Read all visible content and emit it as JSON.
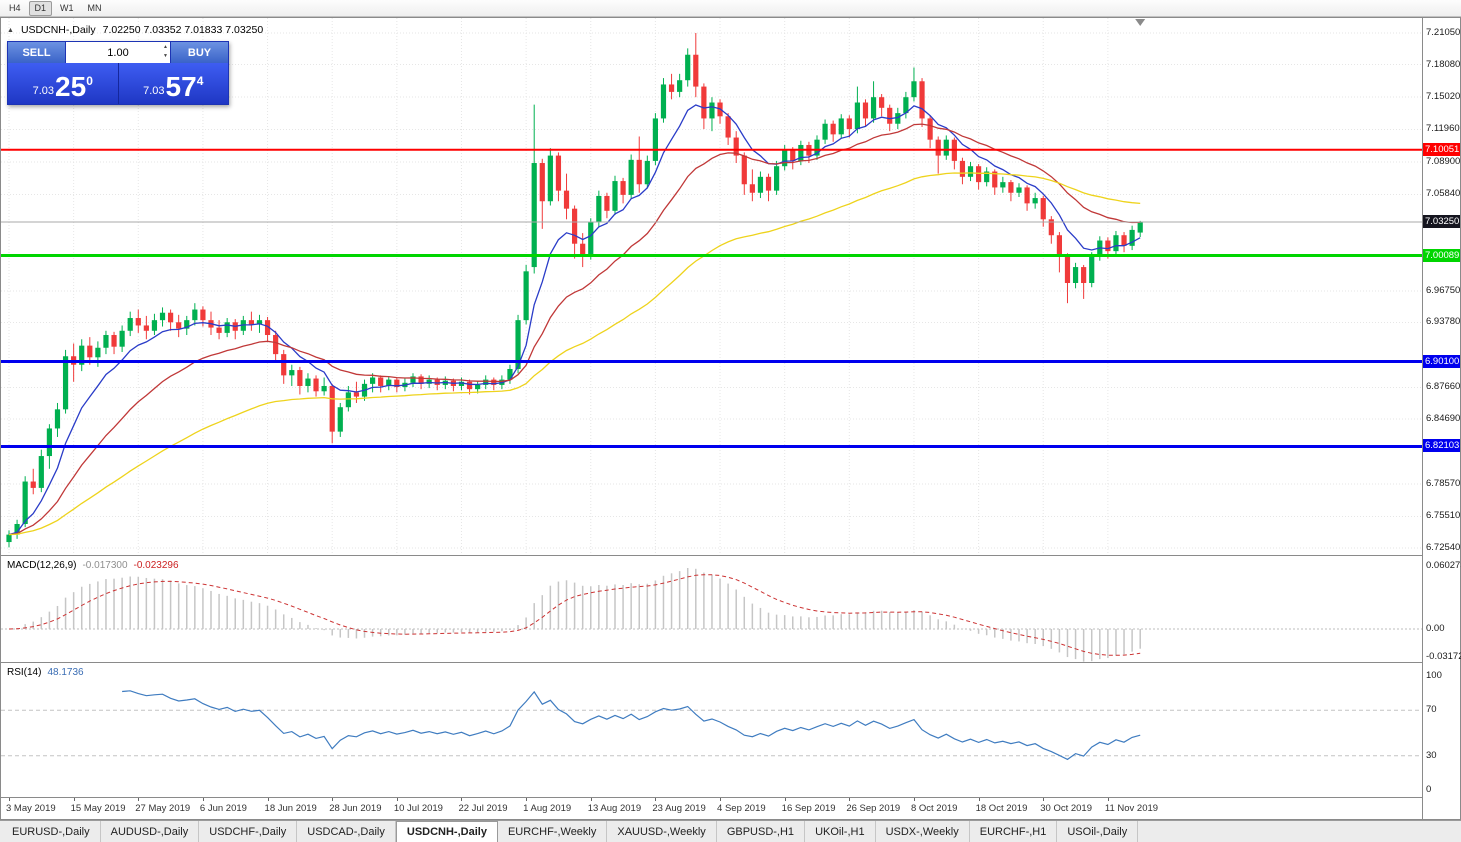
{
  "toolbar": {
    "timeframes": [
      "H4",
      "D1",
      "W1",
      "MN"
    ],
    "active": "D1"
  },
  "chart": {
    "symbol": "USDCNH-,Daily",
    "ohlc_text": "7.02250 7.03352 7.01833 7.03250"
  },
  "icons": {
    "collapse": "▲",
    "spinner_up": "▲",
    "spinner_down": "▼"
  },
  "trade_panel": {
    "sell_label": "SELL",
    "buy_label": "BUY",
    "volume": "1.00",
    "bid": {
      "prefix": "7.03",
      "big": "25",
      "sup": "0"
    },
    "ask": {
      "prefix": "7.03",
      "big": "57",
      "sup": "4"
    },
    "panel_color": "#2d49d8"
  },
  "price_axis": {
    "labels": [
      "7.21050",
      "7.18080",
      "7.15020",
      "7.11960",
      "7.08900",
      "7.05840",
      "6.96750",
      "6.93780",
      "6.87660",
      "6.84690",
      "6.78570",
      "6.75510",
      "6.72540"
    ]
  },
  "macd_panel": {
    "name": "MACD(12,26,9)",
    "value_main": "-0.017300",
    "value_signal": "-0.023296",
    "axis": [
      {
        "label": "0.060273",
        "v": 0.060273
      },
      {
        "label": "0.00",
        "v": 0
      },
      {
        "label": "-0.031725",
        "v": -0.031725
      }
    ]
  },
  "rsi_panel": {
    "name": "RSI(14)",
    "value": "48.1736",
    "axis": [
      {
        "label": "100",
        "v": 100
      },
      {
        "label": "70",
        "v": 70
      },
      {
        "label": "30",
        "v": 30
      },
      {
        "label": "0",
        "v": 0
      }
    ]
  },
  "tab_bar": {
    "active_index": 4,
    "tabs": [
      "EURUSD-,Daily",
      "AUDUSD-,Daily",
      "USDCHF-,Daily",
      "USDCAD-,Daily",
      "USDCNH-,Daily",
      "EURCHF-,Weekly",
      "XAUUSD-,Weekly",
      "GBPUSD-,H1",
      "UKOil-,H1",
      "USDX-,Weekly",
      "EURCHF-,H1",
      "USOil-,Daily"
    ]
  },
  "chart_data": {
    "type": "candlestick",
    "title": "USDCNH-,Daily",
    "ylim": [
      6.7188,
      7.2246
    ],
    "x_ticks": [
      {
        "label": "3 May 2019",
        "i": 0
      },
      {
        "label": "15 May 2019",
        "i": 8
      },
      {
        "label": "27 May 2019",
        "i": 16
      },
      {
        "label": "6 Jun 2019",
        "i": 24
      },
      {
        "label": "18 Jun 2019",
        "i": 32
      },
      {
        "label": "28 Jun 2019",
        "i": 40
      },
      {
        "label": "10 Jul 2019",
        "i": 48
      },
      {
        "label": "22 Jul 2019",
        "i": 56
      },
      {
        "label": "1 Aug 2019",
        "i": 64
      },
      {
        "label": "13 Aug 2019",
        "i": 72
      },
      {
        "label": "23 Aug 2019",
        "i": 80
      },
      {
        "label": "4 Sep 2019",
        "i": 88
      },
      {
        "label": "16 Sep 2019",
        "i": 96
      },
      {
        "label": "26 Sep 2019",
        "i": 104
      },
      {
        "label": "8 Oct 2019",
        "i": 112
      },
      {
        "label": "18 Oct 2019",
        "i": 120
      },
      {
        "label": "30 Oct 2019",
        "i": 128
      },
      {
        "label": "11 Nov 2019",
        "i": 136
      }
    ],
    "hlines": [
      {
        "price": 7.10051,
        "label": "7.10051",
        "color": "#ff0000",
        "width": 2
      },
      {
        "price": 7.00089,
        "label": "7.00089",
        "color": "#00d500",
        "width": 3
      },
      {
        "price": 6.901,
        "label": "6.90100",
        "color": "#0000ee",
        "width": 3
      },
      {
        "price": 6.82103,
        "label": "6.82103",
        "color": "#0000ee",
        "width": 3
      }
    ],
    "current_price": {
      "price": 7.0325,
      "label": "7.03250",
      "color": "#15151f",
      "line_color": "#a8a8a8"
    },
    "colors": {
      "up": "#00b050",
      "down": "#f03a3a",
      "grid": "#e6e6e6"
    },
    "moving_averages": [
      {
        "period": 8,
        "color": "#2a3cc8"
      },
      {
        "period": 21,
        "color": "#c03838"
      },
      {
        "period": 55,
        "color": "#eed31c"
      }
    ],
    "macd": {
      "fast": 12,
      "slow": 26,
      "signal": 9,
      "histogram_color": "#c6c6c6",
      "signal_color": "#cc3333"
    },
    "rsi": {
      "period": 14,
      "color": "#3f7cc0",
      "levels": [
        70,
        30
      ],
      "level_color": "#c4c4c4"
    },
    "ohlc": [
      [
        6.731,
        6.742,
        6.726,
        6.738
      ],
      [
        6.738,
        6.752,
        6.734,
        6.748
      ],
      [
        6.748,
        6.793,
        6.745,
        6.788
      ],
      [
        6.788,
        6.8,
        6.776,
        6.782
      ],
      [
        6.782,
        6.818,
        6.778,
        6.812
      ],
      [
        6.812,
        6.842,
        6.8,
        6.838
      ],
      [
        6.838,
        6.862,
        6.83,
        6.856
      ],
      [
        6.856,
        6.912,
        6.852,
        6.906
      ],
      [
        6.906,
        6.918,
        6.882,
        6.898
      ],
      [
        6.898,
        6.922,
        6.892,
        6.916
      ],
      [
        6.916,
        6.924,
        6.898,
        6.905
      ],
      [
        6.905,
        6.92,
        6.896,
        6.914
      ],
      [
        6.914,
        6.93,
        6.908,
        6.926
      ],
      [
        6.926,
        6.929,
        6.908,
        6.915
      ],
      [
        6.915,
        6.935,
        6.91,
        6.93
      ],
      [
        6.93,
        6.948,
        6.925,
        6.942
      ],
      [
        6.942,
        6.95,
        6.928,
        6.935
      ],
      [
        6.935,
        6.944,
        6.922,
        6.93
      ],
      [
        6.93,
        6.946,
        6.926,
        6.94
      ],
      [
        6.94,
        6.952,
        6.934,
        6.947
      ],
      [
        6.947,
        6.95,
        6.93,
        6.938
      ],
      [
        6.938,
        6.945,
        6.924,
        6.932
      ],
      [
        6.932,
        6.944,
        6.926,
        6.94
      ],
      [
        6.94,
        6.956,
        6.935,
        6.95
      ],
      [
        6.95,
        6.953,
        6.934,
        6.94
      ],
      [
        6.94,
        6.948,
        6.926,
        6.933
      ],
      [
        6.933,
        6.94,
        6.922,
        6.928
      ],
      [
        6.928,
        6.942,
        6.924,
        6.938
      ],
      [
        6.938,
        6.941,
        6.922,
        6.93
      ],
      [
        6.93,
        6.944,
        6.926,
        6.94
      ],
      [
        6.94,
        6.948,
        6.93,
        6.936
      ],
      [
        6.936,
        6.945,
        6.928,
        6.94
      ],
      [
        6.94,
        6.943,
        6.92,
        6.926
      ],
      [
        6.926,
        6.93,
        6.9,
        6.908
      ],
      [
        6.908,
        6.912,
        6.88,
        6.888
      ],
      [
        6.888,
        6.898,
        6.878,
        6.893
      ],
      [
        6.893,
        6.896,
        6.87,
        6.878
      ],
      [
        6.878,
        6.89,
        6.872,
        6.885
      ],
      [
        6.885,
        6.888,
        6.868,
        6.873
      ],
      [
        6.873,
        6.886,
        6.869,
        6.878
      ],
      [
        6.878,
        6.88,
        6.824,
        6.835
      ],
      [
        6.835,
        6.862,
        6.83,
        6.858
      ],
      [
        6.858,
        6.878,
        6.854,
        6.872
      ],
      [
        6.872,
        6.882,
        6.862,
        6.868
      ],
      [
        6.868,
        6.884,
        6.864,
        6.88
      ],
      [
        6.88,
        6.89,
        6.872,
        6.886
      ],
      [
        6.886,
        6.888,
        6.872,
        6.878
      ],
      [
        6.878,
        6.887,
        6.874,
        6.884
      ],
      [
        6.884,
        6.886,
        6.872,
        6.877
      ],
      [
        6.877,
        6.885,
        6.873,
        6.881
      ],
      [
        6.881,
        6.89,
        6.877,
        6.887
      ],
      [
        6.887,
        6.889,
        6.875,
        6.88
      ],
      [
        6.88,
        6.888,
        6.876,
        6.884
      ],
      [
        6.884,
        6.886,
        6.874,
        6.879
      ],
      [
        6.879,
        6.887,
        6.875,
        6.883
      ],
      [
        6.883,
        6.885,
        6.873,
        6.878
      ],
      [
        6.878,
        6.886,
        6.874,
        6.882
      ],
      [
        6.882,
        6.884,
        6.87,
        6.875
      ],
      [
        6.875,
        6.883,
        6.871,
        6.879
      ],
      [
        6.879,
        6.888,
        6.875,
        6.884
      ],
      [
        6.884,
        6.886,
        6.874,
        6.879
      ],
      [
        6.879,
        6.888,
        6.875,
        6.884
      ],
      [
        6.884,
        6.898,
        6.88,
        6.894
      ],
      [
        6.894,
        6.945,
        6.89,
        6.94
      ],
      [
        6.94,
        6.992,
        6.936,
        6.986
      ],
      [
        6.99,
        7.143,
        6.984,
        7.088
      ],
      [
        7.088,
        7.092,
        7.026,
        7.052
      ],
      [
        7.052,
        7.102,
        7.048,
        7.095
      ],
      [
        7.095,
        7.098,
        7.052,
        7.062
      ],
      [
        7.062,
        7.078,
        7.035,
        7.045
      ],
      [
        7.045,
        7.048,
        6.998,
        7.012
      ],
      [
        7.012,
        7.022,
        6.99,
        7.002
      ],
      [
        7.002,
        7.036,
        6.997,
        7.032
      ],
      [
        7.032,
        7.062,
        7.028,
        7.057
      ],
      [
        7.057,
        7.06,
        7.036,
        7.043
      ],
      [
        7.043,
        7.076,
        7.039,
        7.071
      ],
      [
        7.071,
        7.074,
        7.05,
        7.058
      ],
      [
        7.058,
        7.096,
        7.054,
        7.091
      ],
      [
        7.091,
        7.113,
        7.06,
        7.068
      ],
      [
        7.068,
        7.095,
        7.064,
        7.09
      ],
      [
        7.09,
        7.135,
        7.086,
        7.13
      ],
      [
        7.13,
        7.168,
        7.126,
        7.162
      ],
      [
        7.162,
        7.172,
        7.148,
        7.155
      ],
      [
        7.155,
        7.172,
        7.15,
        7.166
      ],
      [
        7.166,
        7.196,
        7.16,
        7.19
      ],
      [
        7.19,
        7.2105,
        7.15,
        7.16
      ],
      [
        7.16,
        7.163,
        7.12,
        7.13
      ],
      [
        7.13,
        7.15,
        7.118,
        7.145
      ],
      [
        7.145,
        7.148,
        7.125,
        7.132
      ],
      [
        7.132,
        7.135,
        7.105,
        7.112
      ],
      [
        7.112,
        7.118,
        7.088,
        7.095
      ],
      [
        7.095,
        7.098,
        7.058,
        7.068
      ],
      [
        7.068,
        7.082,
        7.052,
        7.06
      ],
      [
        7.06,
        7.08,
        7.055,
        7.075
      ],
      [
        7.075,
        7.078,
        7.052,
        7.062
      ],
      [
        7.062,
        7.09,
        7.058,
        7.085
      ],
      [
        7.085,
        7.105,
        7.081,
        7.1
      ],
      [
        7.1,
        7.103,
        7.082,
        7.09
      ],
      [
        7.09,
        7.109,
        7.086,
        7.105
      ],
      [
        7.105,
        7.108,
        7.088,
        7.095
      ],
      [
        7.095,
        7.114,
        7.091,
        7.11
      ],
      [
        7.11,
        7.129,
        7.106,
        7.125
      ],
      [
        7.125,
        7.128,
        7.108,
        7.115
      ],
      [
        7.115,
        7.134,
        7.111,
        7.13
      ],
      [
        7.13,
        7.133,
        7.112,
        7.12
      ],
      [
        7.12,
        7.16,
        7.116,
        7.145
      ],
      [
        7.145,
        7.148,
        7.122,
        7.13
      ],
      [
        7.13,
        7.165,
        7.126,
        7.15
      ],
      [
        7.15,
        7.153,
        7.132,
        7.14
      ],
      [
        7.14,
        7.143,
        7.118,
        7.125
      ],
      [
        7.125,
        7.14,
        7.12,
        7.135
      ],
      [
        7.135,
        7.155,
        7.13,
        7.15
      ],
      [
        7.15,
        7.178,
        7.146,
        7.165
      ],
      [
        7.165,
        7.168,
        7.122,
        7.13
      ],
      [
        7.13,
        7.133,
        7.102,
        7.11
      ],
      [
        7.11,
        7.113,
        7.078,
        7.095
      ],
      [
        7.095,
        7.114,
        7.091,
        7.11
      ],
      [
        7.11,
        7.112,
        7.082,
        7.09
      ],
      [
        7.09,
        7.093,
        7.068,
        7.075
      ],
      [
        7.075,
        7.089,
        7.071,
        7.085
      ],
      [
        7.085,
        7.087,
        7.063,
        7.07
      ],
      [
        7.07,
        7.084,
        7.066,
        7.08
      ],
      [
        7.08,
        7.082,
        7.058,
        7.065
      ],
      [
        7.065,
        7.075,
        7.06,
        7.07
      ],
      [
        7.07,
        7.072,
        7.052,
        7.06
      ],
      [
        7.06,
        7.069,
        7.056,
        7.065
      ],
      [
        7.065,
        7.067,
        7.043,
        7.05
      ],
      [
        7.05,
        7.06,
        7.045,
        7.055
      ],
      [
        7.055,
        7.057,
        7.028,
        7.035
      ],
      [
        7.035,
        7.038,
        7.012,
        7.02
      ],
      [
        7.02,
        7.023,
        6.985,
        7.0
      ],
      [
        7.0,
        7.003,
        6.956,
        6.975
      ],
      [
        6.975,
        6.994,
        6.97,
        6.99
      ],
      [
        6.99,
        6.992,
        6.96,
        6.975
      ],
      [
        6.975,
        7.004,
        6.971,
        7.0
      ],
      [
        7.0,
        7.019,
        6.996,
        7.015
      ],
      [
        7.015,
        7.018,
        6.998,
        7.005
      ],
      [
        7.005,
        7.024,
        7.001,
        7.02
      ],
      [
        7.02,
        7.023,
        7.004,
        7.01
      ],
      [
        7.01,
        7.029,
        7.006,
        7.025
      ],
      [
        7.0225,
        7.03352,
        7.01833,
        7.0325
      ]
    ]
  }
}
